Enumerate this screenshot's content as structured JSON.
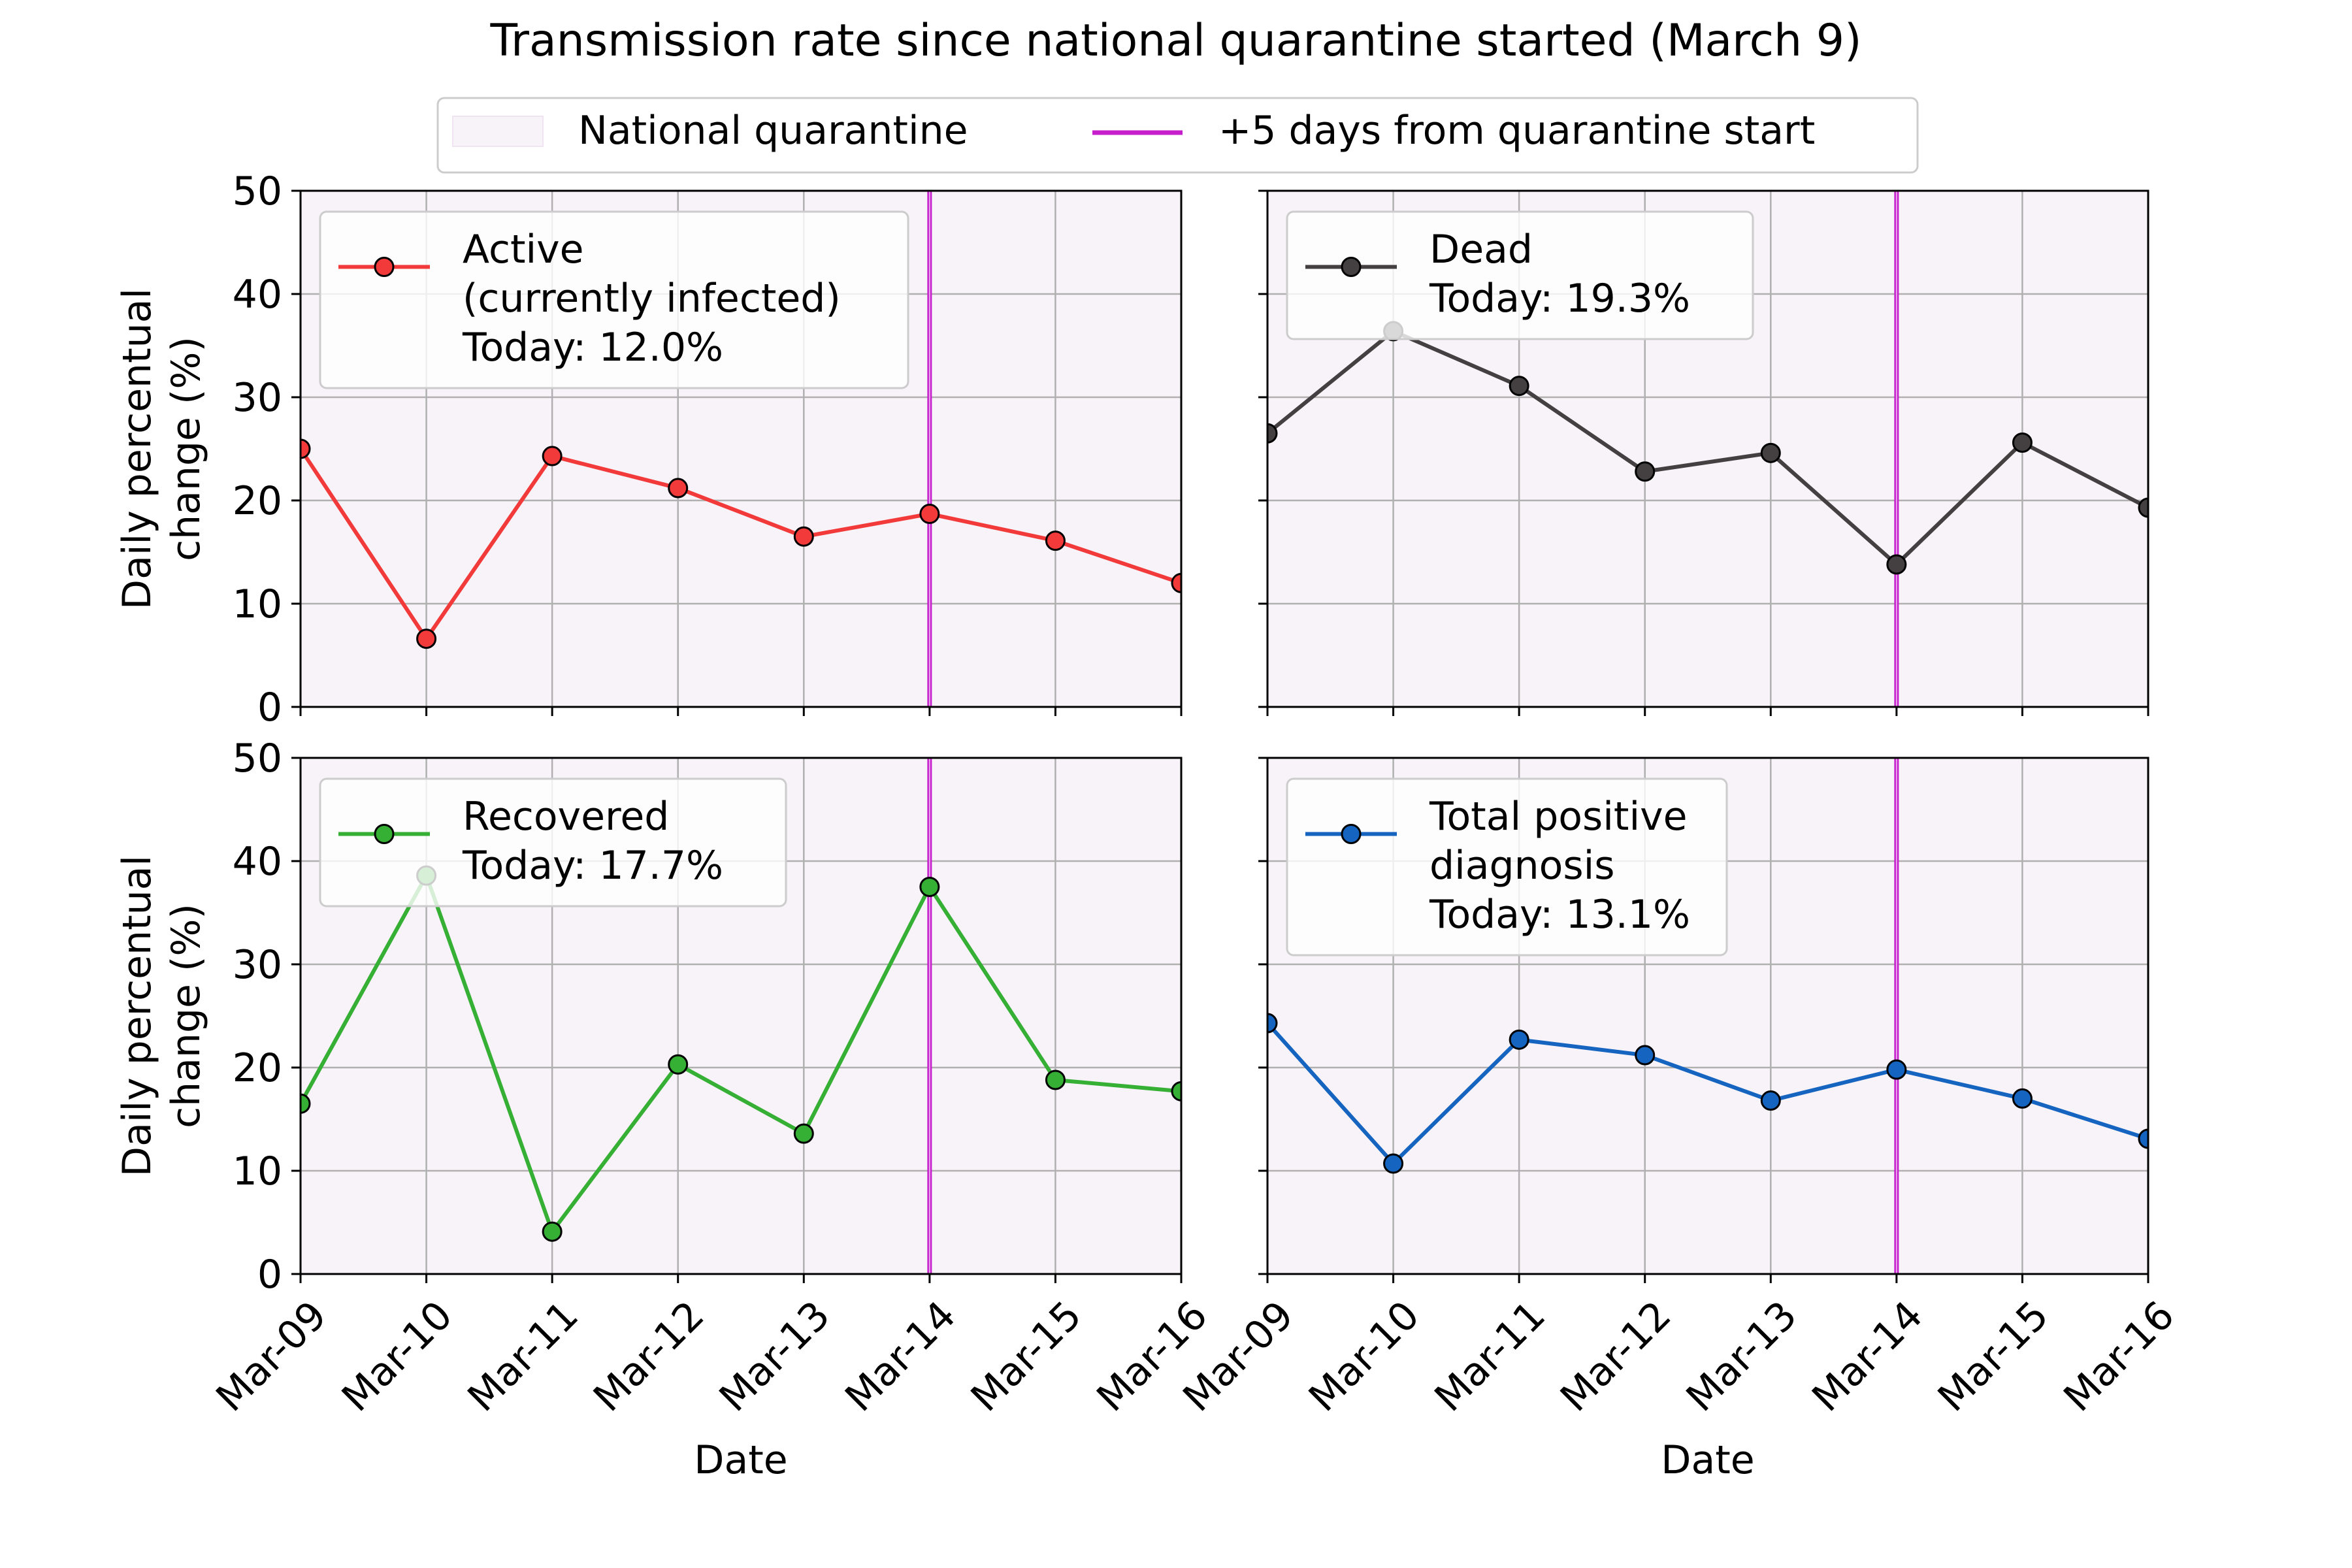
{
  "title": "Transmission rate since national quarantine started (March 9)",
  "legend": {
    "quarantine_label": "National quarantine",
    "marker_label": "+5 days from quarantine start",
    "quarantine_color": "#f8f2f9",
    "marker_color": "#c41fca"
  },
  "chart_data": [
    {
      "type": "line",
      "panel": "top-left",
      "x": [
        "Mar-09",
        "Mar-10",
        "Mar-11",
        "Mar-12",
        "Mar-13",
        "Mar-14",
        "Mar-15",
        "Mar-16"
      ],
      "series": [
        {
          "name": "Active (currently infected)",
          "values": [
            25.0,
            6.6,
            24.3,
            21.2,
            16.5,
            18.7,
            16.1,
            12.0
          ],
          "color": "#f23a3a"
        }
      ],
      "legend_lines": [
        "Active",
        "(currently infected)",
        "Today: 12.0%"
      ],
      "legend_position": "upper-left",
      "ylabel_lines": [
        "Daily percentual",
        "change (%)"
      ],
      "xlabel": "",
      "ylim": [
        0,
        50
      ],
      "yticks": [
        "0",
        "10",
        "20",
        "30",
        "40",
        "50"
      ],
      "xtick_labels_shown": false,
      "ytick_labels_shown": true,
      "marker_x": "Mar-14",
      "grid": true
    },
    {
      "type": "line",
      "panel": "top-right",
      "x": [
        "Mar-09",
        "Mar-10",
        "Mar-11",
        "Mar-12",
        "Mar-13",
        "Mar-14",
        "Mar-15",
        "Mar-16"
      ],
      "series": [
        {
          "name": "Dead",
          "values": [
            26.5,
            36.4,
            31.1,
            22.8,
            24.6,
            13.8,
            25.6,
            19.3
          ],
          "color": "#444042"
        }
      ],
      "legend_lines": [
        "Dead",
        "Today: 19.3%"
      ],
      "legend_position": "upper-left",
      "ylabel_lines": [],
      "xlabel": "",
      "ylim": [
        0,
        50
      ],
      "yticks": [
        "0",
        "10",
        "20",
        "30",
        "40",
        "50"
      ],
      "xtick_labels_shown": false,
      "ytick_labels_shown": false,
      "marker_x": "Mar-14",
      "grid": true
    },
    {
      "type": "line",
      "panel": "bottom-left",
      "x": [
        "Mar-09",
        "Mar-10",
        "Mar-11",
        "Mar-12",
        "Mar-13",
        "Mar-14",
        "Mar-15",
        "Mar-16"
      ],
      "series": [
        {
          "name": "Recovered",
          "values": [
            16.5,
            38.6,
            4.1,
            20.3,
            13.6,
            37.5,
            18.8,
            17.7
          ],
          "color": "#35b035"
        }
      ],
      "legend_lines": [
        "Recovered",
        "Today: 17.7%"
      ],
      "legend_position": "upper-left",
      "ylabel_lines": [
        "Daily percentual",
        "change (%)"
      ],
      "xlabel": "Date",
      "ylim": [
        0,
        50
      ],
      "yticks": [
        "0",
        "10",
        "20",
        "30",
        "40",
        "50"
      ],
      "xtick_labels_shown": true,
      "ytick_labels_shown": true,
      "marker_x": "Mar-14",
      "grid": true
    },
    {
      "type": "line",
      "panel": "bottom-right",
      "x": [
        "Mar-09",
        "Mar-10",
        "Mar-11",
        "Mar-12",
        "Mar-13",
        "Mar-14",
        "Mar-15",
        "Mar-16"
      ],
      "series": [
        {
          "name": "Total positive diagnosis",
          "values": [
            24.3,
            10.7,
            22.7,
            21.2,
            16.8,
            19.8,
            17.0,
            13.1
          ],
          "color": "#1464c0"
        }
      ],
      "legend_lines": [
        "Total positive",
        "diagnosis",
        "Today: 13.1%"
      ],
      "legend_position": "upper-left",
      "ylabel_lines": [],
      "xlabel": "Date",
      "ylim": [
        0,
        50
      ],
      "yticks": [
        "0",
        "10",
        "20",
        "30",
        "40",
        "50"
      ],
      "xtick_labels_shown": true,
      "ytick_labels_shown": false,
      "marker_x": "Mar-14",
      "grid": true
    }
  ]
}
